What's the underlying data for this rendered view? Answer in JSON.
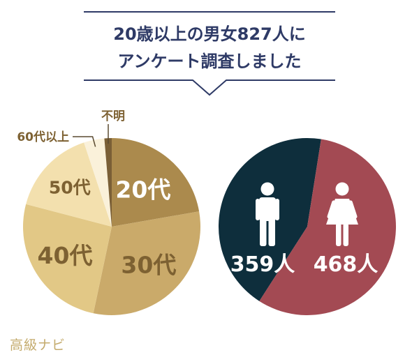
{
  "header": {
    "line1": "20歳以上の男女827人に",
    "line2": "アンケート調査しました",
    "accent_color": "#2e3a66"
  },
  "chart_data": [
    {
      "type": "pie",
      "title": "",
      "categories": [
        "20代",
        "30代",
        "40代",
        "50代",
        "60代以上",
        "不明"
      ],
      "values": [
        184,
        257,
        213,
        131,
        31,
        11
      ],
      "unit": "人",
      "colors": [
        "#ab8a4d",
        "#caaa6a",
        "#e2c886",
        "#f3e0ae",
        "#faf1da",
        "#7a5f36"
      ],
      "label_colors": [
        "#ffffff",
        "#7d6132",
        "#7d6132",
        "#7d6132",
        "#7d6132",
        "#7d6132"
      ],
      "legend": "none",
      "data_labels": "inside"
    },
    {
      "type": "pie",
      "title": "",
      "categories": [
        "男性",
        "女性"
      ],
      "values": [
        359,
        468
      ],
      "value_labels": [
        "359人",
        "468人"
      ],
      "colors": [
        "#0e2e3c",
        "#a34a53"
      ],
      "icons": [
        "male-icon",
        "female-icon"
      ],
      "legend": "none"
    }
  ],
  "footer": {
    "brand": "高級ナビ"
  }
}
